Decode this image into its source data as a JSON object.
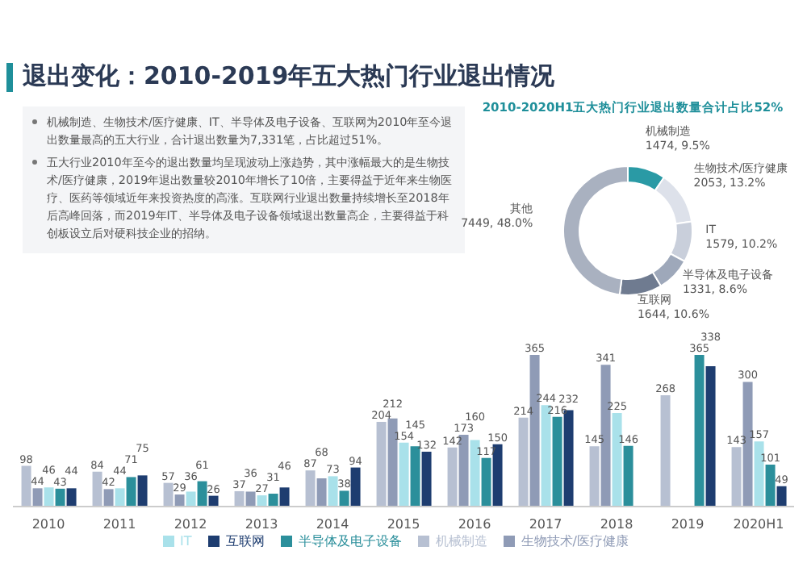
{
  "chart_data": [
    {
      "type": "bar",
      "title": "退出变化：2010-2019年五大热门行业退出情况",
      "annotations": [
        "机械制造、生物技术/医疗健康、IT、半导体及电子设备、互联网为2010年至今退出数量最高的五大行业，合计退出数量为7,331笔，占比超过51%。",
        "五大行业2010年至今的退出数量均呈现波动上涨趋势，其中涨幅最大的是生物技术/医疗健康，2019年退出数量较2010年增长了10倍，主要得益于近年来生物医疗、医药等领域近年来投资热度的高涨。互联网行业退出数量持续增长至2018年后高峰回落，而2019年IT、半导体及电子设备领域退出数量高企，主要得益于科创板设立后对硬科技企业的招纳。"
      ],
      "categories": [
        "2010",
        "2011",
        "2012",
        "2013",
        "2014",
        "2015",
        "2016",
        "2017",
        "2018",
        "2019",
        "2020H1"
      ],
      "series": [
        {
          "name": "机械制造",
          "color": "#b7c0d2",
          "values": [
            98,
            84,
            57,
            37,
            87,
            204,
            142,
            214,
            145,
            268,
            143
          ]
        },
        {
          "name": "生物技术/医疗健康",
          "color": "#8f9bb6",
          "values": [
            44,
            42,
            29,
            36,
            68,
            212,
            173,
            365,
            341,
            null,
            300
          ]
        },
        {
          "name": "IT",
          "color": "#a9e1ea",
          "values": [
            46,
            44,
            36,
            27,
            73,
            154,
            160,
            244,
            225,
            null,
            157
          ]
        },
        {
          "name": "半导体及电子设备",
          "color": "#2b8f9b",
          "values": [
            43,
            71,
            61,
            31,
            38,
            145,
            117,
            216,
            146,
            365,
            101
          ]
        },
        {
          "name": "互联网",
          "color": "#1e3d70",
          "values": [
            44,
            75,
            26,
            46,
            94,
            132,
            150,
            232,
            null,
            338,
            49
          ]
        }
      ],
      "data_labels": true,
      "legend": "bottom",
      "grid": false
    },
    {
      "type": "donut",
      "title": "2010-2020H1五大热门行业退出数量合计占比52%",
      "categories": [
        "机械制造",
        "生物技术/医疗健康",
        "IT",
        "半导体及电子设备",
        "互联网",
        "其他"
      ],
      "values": [
        1474,
        2053,
        1579,
        1331,
        1644,
        7449
      ],
      "value_labels": [
        "1474, 9.5%",
        "2053, 13.2%",
        "1579, 10.2%",
        "1331, 8.6%",
        "1644, 10.6%",
        "7449, 48.0%"
      ],
      "colors": [
        "#2a9aa5",
        "#dde1ea",
        "#c9cfdb",
        "#9ea8ba",
        "#6f7b90",
        "#a9b1c0"
      ]
    }
  ]
}
